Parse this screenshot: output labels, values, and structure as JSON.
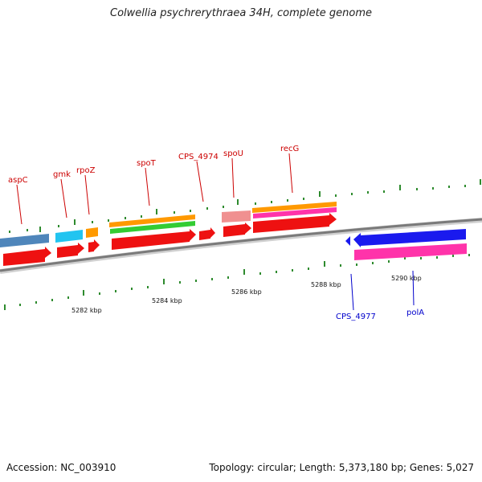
{
  "title": "Colwellia psychrerythraea 34H, complete genome",
  "accession": "Accession: NC_003910",
  "topology": "Topology: circular; Length: 5,373,180 bp; Genes: 5,027",
  "colors": {
    "backbone": "#8c8c8c",
    "tick": "#2e8b2e",
    "label_forward": "#cc0000",
    "label_reverse": "#0000cc",
    "cds": "#ee1111",
    "cds_reverse": "#1a1aee",
    "cog_orange": "#ff9900",
    "cog_green": "#33cc33",
    "cog_pink": "#ff33aa",
    "cog_lightblue": "#22c4f0",
    "cog_steelblue": "#4f86bb",
    "cog_rose": "#f09090"
  },
  "gene_labels_forward": [
    "aspC",
    "gmk",
    "rpoZ",
    "spoT",
    "CPS_4974",
    "spoU",
    "recG"
  ],
  "gene_labels_reverse": [
    "CPS_4977",
    "polA"
  ],
  "scale_labels": [
    "5282 kbp",
    "5284 kbp",
    "5286 kbp",
    "5288 kbp",
    "5290 kbp"
  ]
}
